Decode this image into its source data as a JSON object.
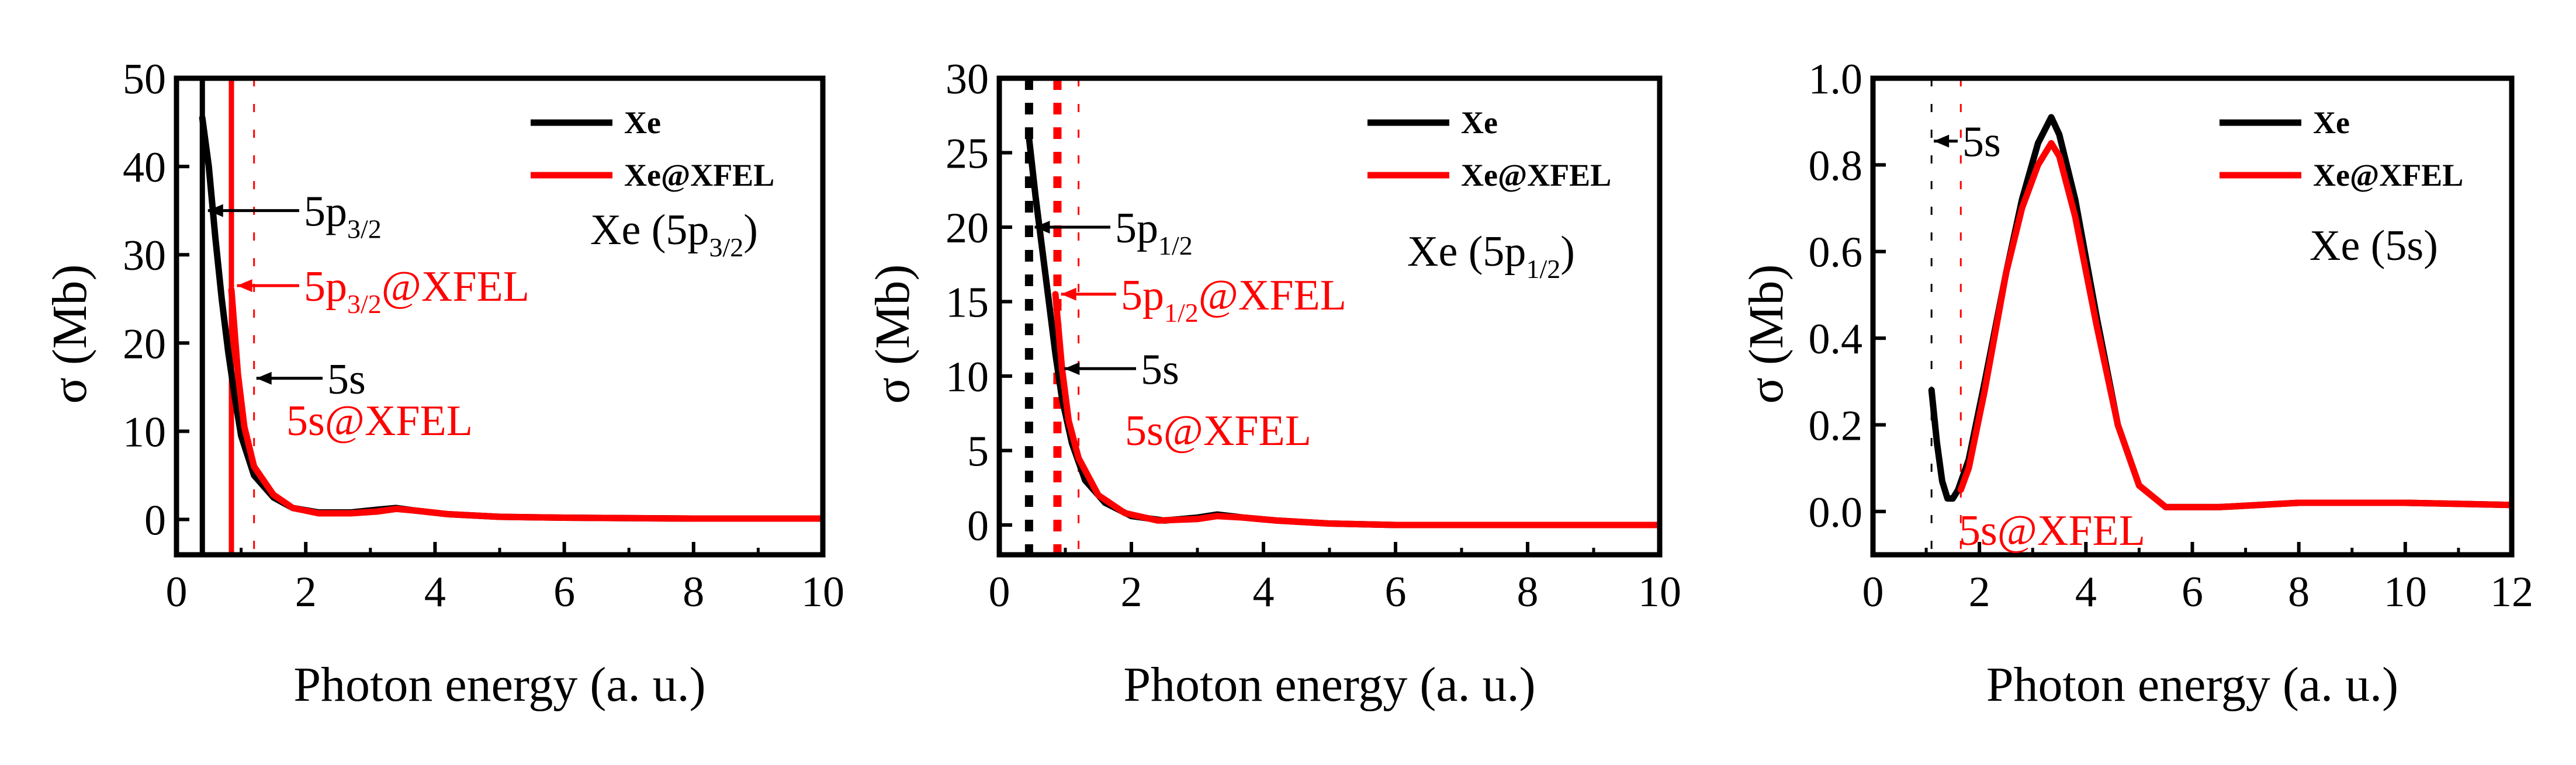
{
  "colors": {
    "xe": "#000000",
    "xfel": "#ff0000",
    "axis": "#000000"
  },
  "chart_data": [
    {
      "type": "line",
      "xlabel": "Photon energy (a. u.)",
      "ylabel": "σ (Mb)",
      "xlim": [
        0,
        10
      ],
      "ylim": [
        -4,
        50
      ],
      "xticks": [
        0,
        2,
        4,
        6,
        8,
        10
      ],
      "yticks": [
        0,
        10,
        20,
        30,
        40,
        50
      ],
      "xtick_labels": [
        "0",
        "2",
        "4",
        "6",
        "8",
        "10"
      ],
      "ytick_labels": [
        "0",
        "10",
        "20",
        "30",
        "40",
        "50"
      ],
      "legend": {
        "position": "top-right",
        "entries": [
          "Xe",
          "Xe@XFEL"
        ]
      },
      "panel_label": {
        "main": "Xe (5p",
        "sub": "3/2",
        "tail": ")"
      },
      "series": [
        {
          "name": "Xe",
          "color": "#000000",
          "points": [
            [
              0.4,
              45.5
            ],
            [
              0.5,
              40
            ],
            [
              0.6,
              32
            ],
            [
              0.7,
              25
            ],
            [
              0.8,
              19
            ],
            [
              0.9,
              14
            ],
            [
              1.0,
              9.5
            ],
            [
              1.2,
              5
            ],
            [
              1.5,
              2.5
            ],
            [
              1.8,
              1.3
            ],
            [
              2.2,
              0.8
            ],
            [
              2.7,
              0.8
            ],
            [
              3.1,
              1.1
            ],
            [
              3.4,
              1.3
            ],
            [
              3.7,
              1.0
            ],
            [
              4.2,
              0.6
            ],
            [
              5,
              0.3
            ],
            [
              6,
              0.2
            ],
            [
              8,
              0.1
            ],
            [
              10,
              0.1
            ]
          ]
        },
        {
          "name": "Xe@XFEL",
          "color": "#ff0000",
          "points": [
            [
              0.85,
              26
            ],
            [
              0.95,
              16.5
            ],
            [
              1.05,
              10.5
            ],
            [
              1.2,
              6
            ],
            [
              1.5,
              2.8
            ],
            [
              1.8,
              1.3
            ],
            [
              2.2,
              0.7
            ],
            [
              2.7,
              0.7
            ],
            [
              3.1,
              0.9
            ],
            [
              3.4,
              1.2
            ],
            [
              3.7,
              1.0
            ],
            [
              4.2,
              0.6
            ],
            [
              5,
              0.3
            ],
            [
              6,
              0.2
            ],
            [
              8,
              0.1
            ],
            [
              10,
              0.1
            ]
          ]
        }
      ],
      "thresholds": [
        {
          "x": 0.4,
          "color": "#000000",
          "style": "solid"
        },
        {
          "x": 0.85,
          "color": "#ff0000",
          "style": "solid"
        },
        {
          "x": 1.2,
          "color": "#ff0000",
          "style": "dashed"
        }
      ],
      "annotations": [
        {
          "main": "5p",
          "sub": "3/2",
          "suffix": "",
          "color": "#000000",
          "x": 0.45,
          "y": 35
        },
        {
          "main": "5p",
          "sub": "3/2",
          "suffix": "@XFEL",
          "color": "#ff0000",
          "x": 0.9,
          "y": 26.5
        },
        {
          "main": "5s",
          "sub": "",
          "suffix": "",
          "color": "#000000",
          "x": 1.2,
          "y": 16
        },
        {
          "main": "5s@XFEL",
          "sub": "",
          "suffix": "",
          "color": "#ff0000",
          "x": null,
          "y": null
        }
      ]
    },
    {
      "type": "line",
      "xlabel": "Photon energy (a. u.)",
      "ylabel": "σ (Mb)",
      "xlim": [
        0,
        10
      ],
      "ylim": [
        -2,
        30
      ],
      "xticks": [
        0,
        2,
        4,
        6,
        8,
        10
      ],
      "yticks": [
        0,
        5,
        10,
        15,
        20,
        25,
        30
      ],
      "xtick_labels": [
        "0",
        "2",
        "4",
        "6",
        "8",
        "10"
      ],
      "ytick_labels": [
        "0",
        "5",
        "10",
        "15",
        "20",
        "25",
        "30"
      ],
      "legend": {
        "position": "top-right",
        "entries": [
          "Xe",
          "Xe@XFEL"
        ]
      },
      "panel_label": {
        "main": "Xe (5p",
        "sub": "1/2",
        "tail": ")"
      },
      "series": [
        {
          "name": "Xe",
          "color": "#000000",
          "points": [
            [
              0.45,
              26
            ],
            [
              0.55,
              22
            ],
            [
              0.65,
              18.5
            ],
            [
              0.75,
              15
            ],
            [
              0.85,
              11.5
            ],
            [
              0.95,
              8.5
            ],
            [
              1.1,
              5.5
            ],
            [
              1.3,
              3
            ],
            [
              1.6,
              1.5
            ],
            [
              2.0,
              0.6
            ],
            [
              2.5,
              0.3
            ],
            [
              3.0,
              0.5
            ],
            [
              3.3,
              0.7
            ],
            [
              3.7,
              0.5
            ],
            [
              4.2,
              0.3
            ],
            [
              5,
              0.1
            ],
            [
              6,
              0
            ],
            [
              8,
              0
            ],
            [
              10,
              0
            ]
          ]
        },
        {
          "name": "Xe@XFEL",
          "color": "#ff0000",
          "points": [
            [
              0.85,
              15.5
            ],
            [
              0.95,
              10.5
            ],
            [
              1.05,
              7
            ],
            [
              1.2,
              4.5
            ],
            [
              1.5,
              2
            ],
            [
              1.9,
              0.8
            ],
            [
              2.4,
              0.3
            ],
            [
              3.0,
              0.4
            ],
            [
              3.3,
              0.6
            ],
            [
              3.7,
              0.5
            ],
            [
              4.2,
              0.3
            ],
            [
              5,
              0.1
            ],
            [
              6,
              0
            ],
            [
              8,
              0
            ],
            [
              10,
              0
            ]
          ]
        }
      ],
      "thresholds": [
        {
          "x": 0.45,
          "color": "#000000",
          "style": "dotted"
        },
        {
          "x": 0.88,
          "color": "#ff0000",
          "style": "dotted"
        },
        {
          "x": 1.2,
          "color": "#ff0000",
          "style": "dashed"
        }
      ],
      "annotations": [
        {
          "main": "5p",
          "sub": "1/2",
          "suffix": "",
          "color": "#000000",
          "x": 0.5,
          "y": 20
        },
        {
          "main": "5p",
          "sub": "1/2",
          "suffix": "@XFEL",
          "color": "#ff0000",
          "x": 0.9,
          "y": 15.5
        },
        {
          "main": "5s",
          "sub": "",
          "suffix": "",
          "color": "#000000",
          "x": 0.95,
          "y": 10.5
        },
        {
          "main": "5s@XFEL",
          "sub": "",
          "suffix": "",
          "color": "#ff0000",
          "x": null,
          "y": null
        }
      ]
    },
    {
      "type": "line",
      "xlabel": "Photon energy (a. u.)",
      "ylabel": "σ (Mb)",
      "xlim": [
        0,
        12
      ],
      "ylim": [
        -0.1,
        1.0
      ],
      "xticks": [
        0,
        2,
        4,
        6,
        8,
        10,
        12
      ],
      "yticks": [
        0.0,
        0.2,
        0.4,
        0.6,
        0.8,
        1.0
      ],
      "xtick_labels": [
        "0",
        "2",
        "4",
        "6",
        "8",
        "10",
        "12"
      ],
      "ytick_labels": [
        "0.0",
        "0.2",
        "0.4",
        "0.6",
        "0.8",
        "1.0"
      ],
      "legend": {
        "position": "top-right",
        "entries": [
          "Xe",
          "Xe@XFEL"
        ]
      },
      "panel_label": {
        "main": "Xe (5s)",
        "sub": "",
        "tail": ""
      },
      "series": [
        {
          "name": "Xe",
          "color": "#000000",
          "points": [
            [
              1.1,
              0.28
            ],
            [
              1.2,
              0.16
            ],
            [
              1.3,
              0.07
            ],
            [
              1.4,
              0.03
            ],
            [
              1.5,
              0.03
            ],
            [
              1.6,
              0.05
            ],
            [
              1.8,
              0.12
            ],
            [
              2.1,
              0.3
            ],
            [
              2.5,
              0.55
            ],
            [
              2.8,
              0.72
            ],
            [
              3.1,
              0.85
            ],
            [
              3.35,
              0.91
            ],
            [
              3.5,
              0.87
            ],
            [
              3.8,
              0.72
            ],
            [
              4.2,
              0.45
            ],
            [
              4.6,
              0.2
            ],
            [
              5.0,
              0.06
            ],
            [
              5.5,
              0.01
            ],
            [
              6.5,
              0.01
            ],
            [
              8,
              0.02
            ],
            [
              10,
              0.02
            ],
            [
              12,
              0.015
            ]
          ]
        },
        {
          "name": "Xe@XFEL",
          "color": "#ff0000",
          "points": [
            [
              1.65,
              0.05
            ],
            [
              1.8,
              0.1
            ],
            [
              2.1,
              0.28
            ],
            [
              2.5,
              0.55
            ],
            [
              2.8,
              0.7
            ],
            [
              3.1,
              0.8
            ],
            [
              3.35,
              0.85
            ],
            [
              3.5,
              0.82
            ],
            [
              3.8,
              0.68
            ],
            [
              4.2,
              0.43
            ],
            [
              4.6,
              0.2
            ],
            [
              5.0,
              0.06
            ],
            [
              5.5,
              0.01
            ],
            [
              6.5,
              0.01
            ],
            [
              8,
              0.02
            ],
            [
              10,
              0.02
            ],
            [
              12,
              0.015
            ]
          ]
        }
      ],
      "thresholds": [
        {
          "x": 1.1,
          "color": "#000000",
          "style": "dashed"
        },
        {
          "x": 1.65,
          "color": "#ff0000",
          "style": "dashed"
        }
      ],
      "annotations": [
        {
          "main": "5s",
          "sub": "",
          "suffix": "",
          "color": "#000000",
          "x": 1.1,
          "y": 0.855
        },
        {
          "main": "5s@XFEL",
          "sub": "",
          "suffix": "",
          "color": "#ff0000",
          "x": null,
          "y": null
        }
      ]
    }
  ]
}
